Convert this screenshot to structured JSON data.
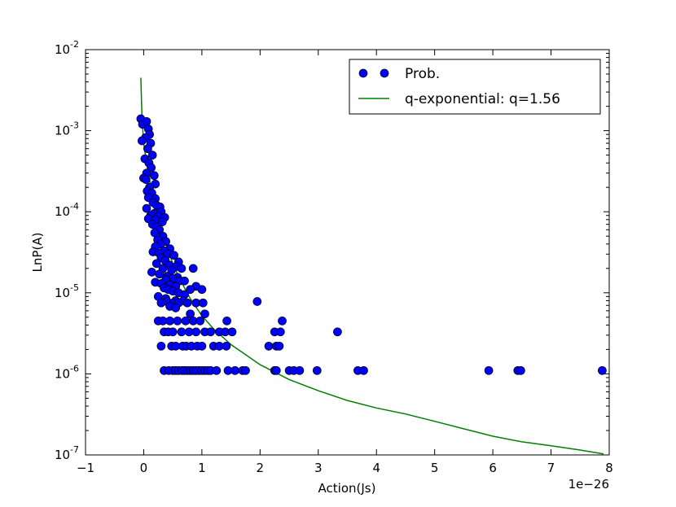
{
  "chart_data": {
    "type": "scatter",
    "title": "",
    "xlabel": "Action(Js)",
    "ylabel": "LnP(A)",
    "x_offset_label": "1e−26",
    "xlim": [
      -1,
      8
    ],
    "ylim": [
      1e-07,
      0.01
    ],
    "yscale": "log",
    "x_ticks": [
      {
        "value": -1,
        "label": "−1"
      },
      {
        "value": 0,
        "label": "0"
      },
      {
        "value": 1,
        "label": "1"
      },
      {
        "value": 2,
        "label": "2"
      },
      {
        "value": 3,
        "label": "3"
      },
      {
        "value": 4,
        "label": "4"
      },
      {
        "value": 5,
        "label": "5"
      },
      {
        "value": 6,
        "label": "6"
      },
      {
        "value": 7,
        "label": "7"
      },
      {
        "value": 8,
        "label": "8"
      }
    ],
    "y_ticks": [
      {
        "exp": -7,
        "base": "10",
        "sup": "-7"
      },
      {
        "exp": -6,
        "base": "10",
        "sup": "-6"
      },
      {
        "exp": -5,
        "base": "10",
        "sup": "-5"
      },
      {
        "exp": -4,
        "base": "10",
        "sup": "-4"
      },
      {
        "exp": -3,
        "base": "10",
        "sup": "-3"
      },
      {
        "exp": -2,
        "base": "10",
        "sup": "-2"
      }
    ],
    "grid": false,
    "legend_position": "top-right",
    "colors": {
      "points": "#0000ff",
      "points_edge": "#000000",
      "fit": "#008000"
    },
    "series": [
      {
        "name": "Prob.",
        "kind": "scatter",
        "points": [
          [
            -0.05,
            0.0014
          ],
          [
            -0.02,
            0.0012
          ],
          [
            0.05,
            0.0013
          ],
          [
            0.08,
            0.00105
          ],
          [
            0.1,
            0.0009
          ],
          [
            0.03,
            0.00082
          ],
          [
            -0.03,
            0.00075
          ],
          [
            0.12,
            0.0007
          ],
          [
            0.07,
            0.0006
          ],
          [
            0.15,
            0.0005
          ],
          [
            0.02,
            0.00045
          ],
          [
            0.09,
            0.0004
          ],
          [
            0.13,
            0.00035
          ],
          [
            0.05,
            0.0003
          ],
          [
            0.18,
            0.00028
          ],
          [
            0.0,
            0.00026
          ],
          [
            0.04,
            0.00025
          ],
          [
            0.2,
            0.00022
          ],
          [
            0.1,
            0.0002
          ],
          [
            0.06,
            0.00018
          ],
          [
            0.14,
            0.00017
          ],
          [
            0.08,
            0.00015
          ],
          [
            0.2,
            0.000145
          ],
          [
            0.16,
            0.00013
          ],
          [
            0.22,
            0.00012
          ],
          [
            0.28,
            0.000115
          ],
          [
            0.05,
            0.00011
          ],
          [
            0.3,
            0.0001
          ],
          [
            0.18,
            9.5e-05
          ],
          [
            0.12,
            9e-05
          ],
          [
            0.25,
            8.8e-05
          ],
          [
            0.36,
            8.5e-05
          ],
          [
            0.08,
            8.2e-05
          ],
          [
            0.2,
            8e-05
          ],
          [
            0.32,
            7.5e-05
          ],
          [
            0.15,
            7e-05
          ],
          [
            0.22,
            6.5e-05
          ],
          [
            0.27,
            6e-05
          ],
          [
            0.19,
            5.5e-05
          ],
          [
            0.33,
            5e-05
          ],
          [
            0.24,
            4.5e-05
          ],
          [
            0.38,
            4.3e-05
          ],
          [
            0.29,
            4e-05
          ],
          [
            0.2,
            3.7e-05
          ],
          [
            0.45,
            3.5e-05
          ],
          [
            0.35,
            3.3e-05
          ],
          [
            0.16,
            3.2e-05
          ],
          [
            0.26,
            3.1e-05
          ],
          [
            0.41,
            3e-05
          ],
          [
            0.52,
            2.9e-05
          ],
          [
            0.3,
            2.7e-05
          ],
          [
            0.37,
            2.5e-05
          ],
          [
            0.6,
            2.4e-05
          ],
          [
            0.22,
            2.3e-05
          ],
          [
            0.44,
            2.2e-05
          ],
          [
            0.55,
            2.1e-05
          ],
          [
            0.33,
            2e-05
          ],
          [
            0.65,
            2e-05
          ],
          [
            0.48,
            1.9e-05
          ],
          [
            0.85,
            2e-05
          ],
          [
            0.14,
            1.8e-05
          ],
          [
            0.27,
            1.7e-05
          ],
          [
            0.4,
            1.6e-05
          ],
          [
            0.58,
            1.55e-05
          ],
          [
            0.5,
            1.5e-05
          ],
          [
            0.38,
            1.45e-05
          ],
          [
            0.62,
            1.4e-05
          ],
          [
            0.7,
            1.4e-05
          ],
          [
            0.2,
            1.35e-05
          ],
          [
            0.3,
            1.3e-05
          ],
          [
            0.45,
            1.25e-05
          ],
          [
            0.55,
            1.2e-05
          ],
          [
            0.9,
            1.2e-05
          ],
          [
            0.35,
            1.15e-05
          ],
          [
            0.42,
            1.1e-05
          ],
          [
            0.5,
            1.05e-05
          ],
          [
            0.6,
            1e-05
          ],
          [
            0.7,
            9.5e-06
          ],
          [
            0.8,
            1.1e-05
          ],
          [
            1.0,
            1.1e-05
          ],
          [
            0.25,
            9e-06
          ],
          [
            0.38,
            8.5e-06
          ],
          [
            0.55,
            8e-06
          ],
          [
            0.68,
            8e-06
          ],
          [
            0.4,
            7.8e-06
          ],
          [
            0.5,
            7.5e-06
          ],
          [
            0.6,
            7.5e-06
          ],
          [
            0.75,
            7.5e-06
          ],
          [
            0.9,
            7.5e-06
          ],
          [
            1.02,
            7.5e-06
          ],
          [
            0.3,
            7.5e-06
          ],
          [
            0.45,
            6.8e-06
          ],
          [
            0.55,
            6.5e-06
          ],
          [
            0.8,
            5.5e-06
          ],
          [
            1.05,
            5.5e-06
          ],
          [
            1.95,
            7.8e-06
          ],
          [
            0.25,
            4.5e-06
          ],
          [
            0.33,
            4.5e-06
          ],
          [
            0.45,
            4.5e-06
          ],
          [
            0.58,
            4.5e-06
          ],
          [
            0.72,
            4.5e-06
          ],
          [
            0.85,
            4.5e-06
          ],
          [
            0.97,
            4.5e-06
          ],
          [
            1.43,
            4.5e-06
          ],
          [
            2.38,
            4.5e-06
          ],
          [
            0.35,
            3.3e-06
          ],
          [
            0.42,
            3.3e-06
          ],
          [
            0.5,
            3.3e-06
          ],
          [
            0.65,
            3.3e-06
          ],
          [
            0.78,
            3.3e-06
          ],
          [
            0.9,
            3.3e-06
          ],
          [
            1.05,
            3.3e-06
          ],
          [
            1.15,
            3.3e-06
          ],
          [
            1.3,
            3.3e-06
          ],
          [
            1.4,
            3.3e-06
          ],
          [
            1.52,
            3.3e-06
          ],
          [
            2.25,
            3.3e-06
          ],
          [
            2.35,
            3.3e-06
          ],
          [
            3.33,
            3.3e-06
          ],
          [
            0.3,
            2.2e-06
          ],
          [
            0.48,
            2.2e-06
          ],
          [
            0.55,
            2.2e-06
          ],
          [
            0.67,
            2.2e-06
          ],
          [
            0.73,
            2.2e-06
          ],
          [
            0.82,
            2.2e-06
          ],
          [
            0.92,
            2.2e-06
          ],
          [
            1.0,
            2.2e-06
          ],
          [
            1.2,
            2.2e-06
          ],
          [
            1.3,
            2.2e-06
          ],
          [
            1.42,
            2.2e-06
          ],
          [
            2.15,
            2.2e-06
          ],
          [
            2.28,
            2.2e-06
          ],
          [
            2.33,
            2.2e-06
          ],
          [
            0.35,
            1.1e-06
          ],
          [
            0.43,
            1.1e-06
          ],
          [
            0.5,
            1.1e-06
          ],
          [
            0.55,
            1.1e-06
          ],
          [
            0.6,
            1.1e-06
          ],
          [
            0.66,
            1.1e-06
          ],
          [
            0.7,
            1.1e-06
          ],
          [
            0.75,
            1.1e-06
          ],
          [
            0.8,
            1.1e-06
          ],
          [
            0.85,
            1.1e-06
          ],
          [
            0.9,
            1.1e-06
          ],
          [
            0.95,
            1.1e-06
          ],
          [
            1.0,
            1.1e-06
          ],
          [
            1.05,
            1.1e-06
          ],
          [
            1.1,
            1.1e-06
          ],
          [
            1.15,
            1.1e-06
          ],
          [
            1.25,
            1.1e-06
          ],
          [
            1.45,
            1.1e-06
          ],
          [
            1.57,
            1.1e-06
          ],
          [
            1.7,
            1.1e-06
          ],
          [
            1.75,
            1.1e-06
          ],
          [
            2.25,
            1.1e-06
          ],
          [
            2.28,
            1.1e-06
          ],
          [
            2.5,
            1.1e-06
          ],
          [
            2.58,
            1.1e-06
          ],
          [
            2.68,
            1.1e-06
          ],
          [
            2.98,
            1.1e-06
          ],
          [
            3.68,
            1.1e-06
          ],
          [
            3.78,
            1.1e-06
          ],
          [
            5.93,
            1.1e-06
          ],
          [
            6.43,
            1.1e-06
          ],
          [
            6.48,
            1.1e-06
          ],
          [
            7.88,
            1.1e-06
          ]
        ]
      },
      {
        "name": "q-exponential: q=1.56",
        "kind": "line",
        "points": [
          [
            -0.05,
            0.0045
          ],
          [
            -0.03,
            0.0015
          ],
          [
            0.0,
            0.0007
          ],
          [
            0.05,
            0.0004
          ],
          [
            0.1,
            0.00025
          ],
          [
            0.15,
            0.00016
          ],
          [
            0.2,
            0.00011
          ],
          [
            0.3,
            6e-05
          ],
          [
            0.4,
            3.6e-05
          ],
          [
            0.5,
            2.3e-05
          ],
          [
            0.6,
            1.6e-05
          ],
          [
            0.7,
            1.15e-05
          ],
          [
            0.8,
            8.5e-06
          ],
          [
            1.0,
            5.2e-06
          ],
          [
            1.2,
            3.6e-06
          ],
          [
            1.5,
            2.3e-06
          ],
          [
            2.0,
            1.3e-06
          ],
          [
            2.5,
            8.5e-07
          ],
          [
            3.0,
            6.2e-07
          ],
          [
            3.5,
            4.7e-07
          ],
          [
            4.0,
            3.8e-07
          ],
          [
            4.5,
            3.2e-07
          ],
          [
            5.0,
            2.6e-07
          ],
          [
            5.5,
            2.1e-07
          ],
          [
            6.0,
            1.7e-07
          ],
          [
            6.5,
            1.45e-07
          ],
          [
            7.0,
            1.3e-07
          ],
          [
            7.5,
            1.15e-07
          ],
          [
            7.9,
            1.03e-07
          ]
        ]
      }
    ]
  }
}
